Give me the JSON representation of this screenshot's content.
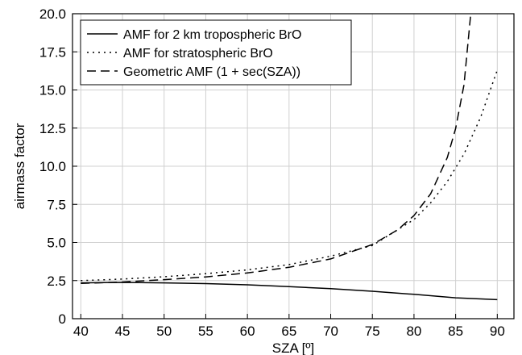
{
  "chart_data": {
    "type": "line",
    "title": "",
    "xlabel": "SZA [º]",
    "ylabel": "airmass factor",
    "xlim": [
      39,
      92
    ],
    "ylim": [
      0,
      20
    ],
    "xticks": [
      40,
      45,
      50,
      55,
      60,
      65,
      70,
      75,
      80,
      85,
      90
    ],
    "yticks": [
      0,
      2.5,
      5.0,
      7.5,
      10.0,
      12.5,
      15.0,
      17.5,
      20.0
    ],
    "ytick_labels": [
      "0",
      "2.5",
      "5.0",
      "7.5",
      "10.0",
      "12.5",
      "15.0",
      "17.5",
      "20.0"
    ],
    "grid": true,
    "legend_position": "top-left",
    "series": [
      {
        "name": "AMF for 2 km tropospheric BrO",
        "style": "solid",
        "color": "#000000",
        "x": [
          40,
          45,
          50,
          55,
          60,
          65,
          70,
          75,
          80,
          85,
          90
        ],
        "y": [
          2.35,
          2.38,
          2.35,
          2.3,
          2.22,
          2.1,
          1.97,
          1.8,
          1.6,
          1.37,
          1.25
        ]
      },
      {
        "name": "AMF for stratospheric BrO",
        "style": "dotted",
        "color": "#000000",
        "x": [
          40,
          45,
          50,
          55,
          60,
          65,
          70,
          75,
          80,
          82,
          84,
          86,
          88,
          90
        ],
        "y": [
          2.5,
          2.6,
          2.75,
          2.95,
          3.2,
          3.55,
          4.1,
          4.8,
          6.5,
          7.6,
          9.0,
          10.8,
          13.2,
          16.3
        ]
      },
      {
        "name": "Geometric AMF (1 + sec(SZA))",
        "style": "dashed",
        "color": "#000000",
        "x": [
          40,
          45,
          50,
          55,
          60,
          65,
          70,
          75,
          78,
          80,
          82,
          84,
          85,
          86,
          86.8
        ],
        "y": [
          2.31,
          2.41,
          2.56,
          2.74,
          3.0,
          3.37,
          3.92,
          4.86,
          5.81,
          6.76,
          8.19,
          10.57,
          12.47,
          15.34,
          19.9
        ]
      }
    ]
  }
}
